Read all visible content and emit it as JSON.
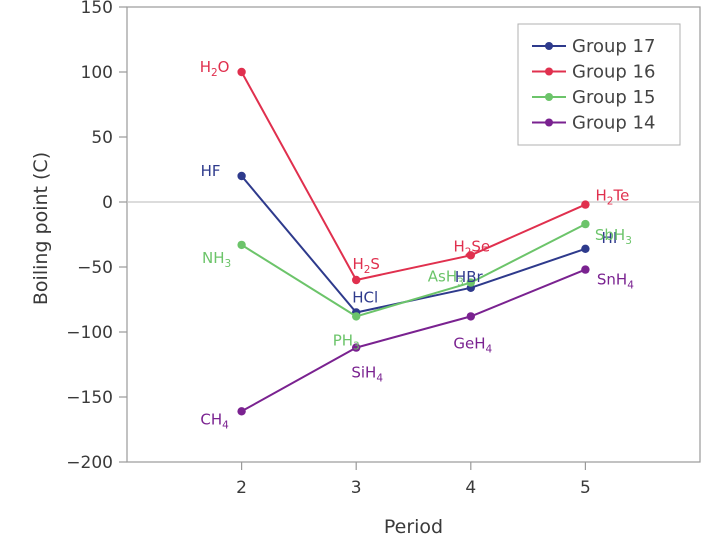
{
  "chart_data": {
    "type": "line",
    "title": "",
    "xlabel": "Period",
    "ylabel": "Boiling point (C)",
    "x": [
      2,
      3,
      4,
      5
    ],
    "xlim": [
      1,
      6
    ],
    "ylim": [
      -200,
      150
    ],
    "x_ticks": [
      "2",
      "3",
      "4",
      "5"
    ],
    "y_ticks": [
      "150",
      "100",
      "50",
      "0",
      "−50",
      "−100",
      "−150",
      "−200"
    ],
    "y_tick_values": [
      150,
      100,
      50,
      0,
      -50,
      -100,
      -150,
      -200
    ],
    "grid": false,
    "zero_line": true,
    "legend_position": "top-right",
    "series": [
      {
        "name": "Group 17",
        "color": "#2e3a8c",
        "values": [
          20,
          -85,
          -66,
          -36
        ],
        "labels": [
          {
            "main": "HF",
            "sub": "",
            "tail": ""
          },
          {
            "main": "HCl",
            "sub": "",
            "tail": ""
          },
          {
            "main": "HBr",
            "sub": "",
            "tail": ""
          },
          {
            "main": "HI",
            "sub": "",
            "tail": ""
          }
        ]
      },
      {
        "name": "Group 16",
        "color": "#e0304e",
        "values": [
          100,
          -60,
          -41,
          -2
        ],
        "labels": [
          {
            "main": "H",
            "sub": "2",
            "tail": "O"
          },
          {
            "main": "H",
            "sub": "2",
            "tail": "S"
          },
          {
            "main": "H",
            "sub": "2",
            "tail": "Se"
          },
          {
            "main": "H",
            "sub": "2",
            "tail": "Te"
          }
        ]
      },
      {
        "name": "Group 15",
        "color": "#6cc46a",
        "values": [
          -33,
          -88,
          -62,
          -17
        ],
        "labels": [
          {
            "main": "NH",
            "sub": "3",
            "tail": ""
          },
          {
            "main": "PH",
            "sub": "3",
            "tail": ""
          },
          {
            "main": "AsH",
            "sub": "3",
            "tail": ""
          },
          {
            "main": "SbH",
            "sub": "3",
            "tail": ""
          }
        ]
      },
      {
        "name": "Group 14",
        "color": "#7a2290",
        "values": [
          -161,
          -112,
          -88,
          -52
        ],
        "labels": [
          {
            "main": "CH",
            "sub": "4",
            "tail": ""
          },
          {
            "main": "SiH",
            "sub": "4",
            "tail": ""
          },
          {
            "main": "GeH",
            "sub": "4",
            "tail": ""
          },
          {
            "main": "SnH",
            "sub": "4",
            "tail": ""
          }
        ]
      }
    ]
  }
}
